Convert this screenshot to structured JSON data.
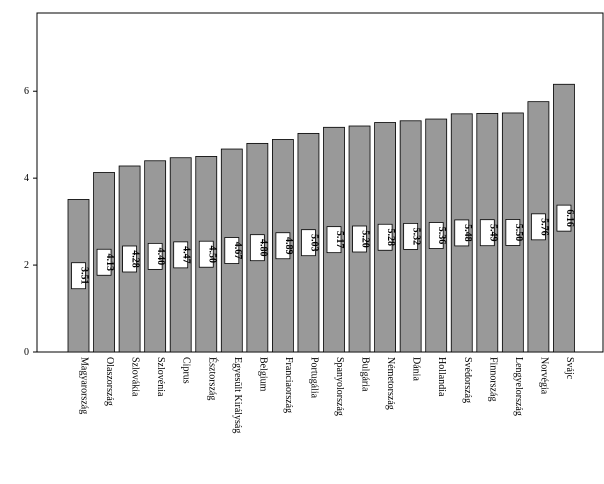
{
  "chart_data": {
    "type": "bar",
    "categories": [
      "Magyarország",
      "Olaszország",
      "Szlovákia",
      "Szlovénia",
      "Ciprus",
      "Észtország",
      "Egyesült Királyság",
      "Belgium",
      "Franciaország",
      "Portugália",
      "Spanyolország",
      "Bulgária",
      "Németország",
      "Dánia",
      "Hollandia",
      "Svédország",
      "Finnország",
      "Lengyelország",
      "Norvégia",
      "Svájc"
    ],
    "values": [
      3.51,
      4.13,
      4.28,
      4.4,
      4.47,
      4.5,
      4.67,
      4.8,
      4.89,
      5.03,
      5.17,
      5.2,
      5.28,
      5.32,
      5.36,
      5.48,
      5.49,
      5.5,
      5.76,
      6.16
    ],
    "value_labels": [
      "3.51",
      "4.13",
      "4.28",
      "4.40",
      "4.47",
      "4.50",
      "4.67",
      "4.80",
      "4.89",
      "5.03",
      "5.17",
      "5.20",
      "5.28",
      "5.32",
      "5.36",
      "5.48",
      "5.49",
      "5.50",
      "5.76",
      "6.16"
    ],
    "color": "#999999",
    "ylim": [
      0,
      7.8
    ],
    "yticks": [
      0,
      2,
      4,
      6
    ]
  }
}
